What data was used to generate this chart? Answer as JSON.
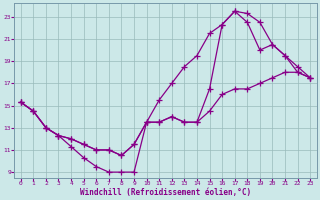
{
  "bg_color": "#cce8e8",
  "line_color": "#880088",
  "grid_color": "#99bbbb",
  "xlabel": "Windchill (Refroidissement éolien,°C)",
  "xlim": [
    -0.5,
    23.5
  ],
  "ylim": [
    8.5,
    24.2
  ],
  "yticks": [
    9,
    11,
    13,
    15,
    17,
    19,
    21,
    23
  ],
  "xticks": [
    0,
    1,
    2,
    3,
    4,
    5,
    6,
    7,
    8,
    9,
    10,
    11,
    12,
    13,
    14,
    15,
    16,
    17,
    18,
    19,
    20,
    21,
    22,
    23
  ],
  "line1_x": [
    0,
    1,
    2,
    3,
    4,
    5,
    6,
    7,
    8,
    9,
    10,
    11,
    12,
    13,
    14,
    15,
    16,
    17,
    18,
    19,
    20,
    21,
    22,
    23
  ],
  "line1_y": [
    15.3,
    14.5,
    13.0,
    12.3,
    11.3,
    10.3,
    9.5,
    9.0,
    9.0,
    9.0,
    13.5,
    15.5,
    17.0,
    18.5,
    19.5,
    21.5,
    22.3,
    23.5,
    23.3,
    22.5,
    20.5,
    19.5,
    18.5,
    17.5
  ],
  "line2_x": [
    0,
    1,
    2,
    3,
    4,
    5,
    6,
    7,
    8,
    9,
    10,
    11,
    12,
    13,
    14,
    15,
    16,
    17,
    18,
    19,
    20,
    21,
    22,
    23
  ],
  "line2_y": [
    15.3,
    14.5,
    13.0,
    12.3,
    12.0,
    11.5,
    11.0,
    11.0,
    10.5,
    11.5,
    13.5,
    13.5,
    14.0,
    13.5,
    13.5,
    16.5,
    22.3,
    23.5,
    22.5,
    20.0,
    20.5,
    19.5,
    18.0,
    17.5
  ],
  "line3_x": [
    0,
    1,
    2,
    3,
    4,
    5,
    6,
    7,
    8,
    9,
    10,
    11,
    12,
    13,
    14,
    15,
    16,
    17,
    18,
    19,
    20,
    21,
    22,
    23
  ],
  "line3_y": [
    15.3,
    14.5,
    13.0,
    12.3,
    12.0,
    11.5,
    11.0,
    11.0,
    10.5,
    11.5,
    13.5,
    13.5,
    14.0,
    13.5,
    13.5,
    14.5,
    16.0,
    16.5,
    16.5,
    17.0,
    17.5,
    18.0,
    18.0,
    17.5
  ]
}
